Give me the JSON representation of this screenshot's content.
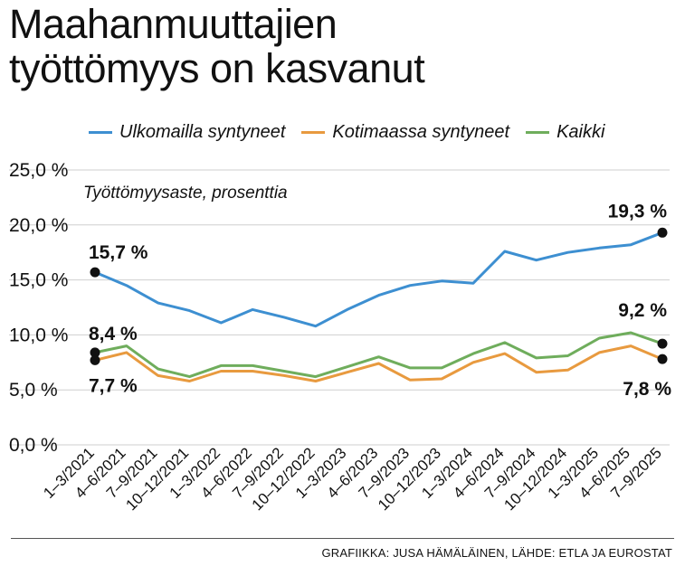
{
  "title_line1": "Maahanmuuttajien",
  "title_line2": "työttömyys on kasvanut",
  "source": "GRAFIIKKA: JUSA HÄMÄLÄINEN, LÄHDE: ETLA JA EUROSTAT",
  "colors": {
    "blue": "#3d8fd1",
    "orange": "#e89a3f",
    "green": "#6fad5c",
    "marker": "#111111"
  },
  "chart_data": {
    "type": "line",
    "ylabel": "Työttömyysaste, prosenttia",
    "ylim": [
      0,
      25
    ],
    "yticks": [
      "0,0 %",
      "5,0 %",
      "10,0 %",
      "15,0 %",
      "20,0 %",
      "25,0 %"
    ],
    "grid": "horizontal",
    "legend": "top",
    "categories": [
      "1–3/2021",
      "4–6/2021",
      "7–9/2021",
      "10–12/2021",
      "1–3/2022",
      "4–6/2022",
      "7–9/2022",
      "10–12/2022",
      "1–3/2023",
      "4–6/2023",
      "7–9/2023",
      "10–12/2023",
      "1–3/2024",
      "4–6/2024",
      "7–9/2024",
      "10–12/2024",
      "1–3/2025",
      "4–6/2025",
      "7–9/2025"
    ],
    "series": [
      {
        "name": "Ulkomailla syntyneet",
        "color": "#3d8fd1",
        "values": [
          15.7,
          14.5,
          12.9,
          12.2,
          11.1,
          12.3,
          11.6,
          10.8,
          12.3,
          13.6,
          14.5,
          14.9,
          14.7,
          17.6,
          16.8,
          17.5,
          17.9,
          18.2,
          19.3
        ]
      },
      {
        "name": "Kotimaassa syntyneet",
        "color": "#e89a3f",
        "values": [
          7.7,
          8.4,
          6.3,
          5.8,
          6.7,
          6.7,
          6.3,
          5.8,
          6.6,
          7.4,
          5.9,
          6.0,
          7.5,
          8.3,
          6.6,
          6.8,
          8.4,
          9.0,
          7.8
        ]
      },
      {
        "name": "Kaikki",
        "color": "#6fad5c",
        "values": [
          8.4,
          9.0,
          6.9,
          6.2,
          7.2,
          7.2,
          6.7,
          6.2,
          7.1,
          8.0,
          7.0,
          7.0,
          8.3,
          9.3,
          7.9,
          8.1,
          9.7,
          10.2,
          9.2
        ]
      }
    ],
    "annotations": [
      {
        "text": "15,7 %",
        "series": 0,
        "index": 0
      },
      {
        "text": "8,4 %",
        "series": 2,
        "index": 0
      },
      {
        "text": "7,7 %",
        "series": 1,
        "index": 0
      },
      {
        "text": "19,3 %",
        "series": 0,
        "index": 18
      },
      {
        "text": "9,2 %",
        "series": 2,
        "index": 18
      },
      {
        "text": "7,8 %",
        "series": 1,
        "index": 18
      }
    ]
  }
}
